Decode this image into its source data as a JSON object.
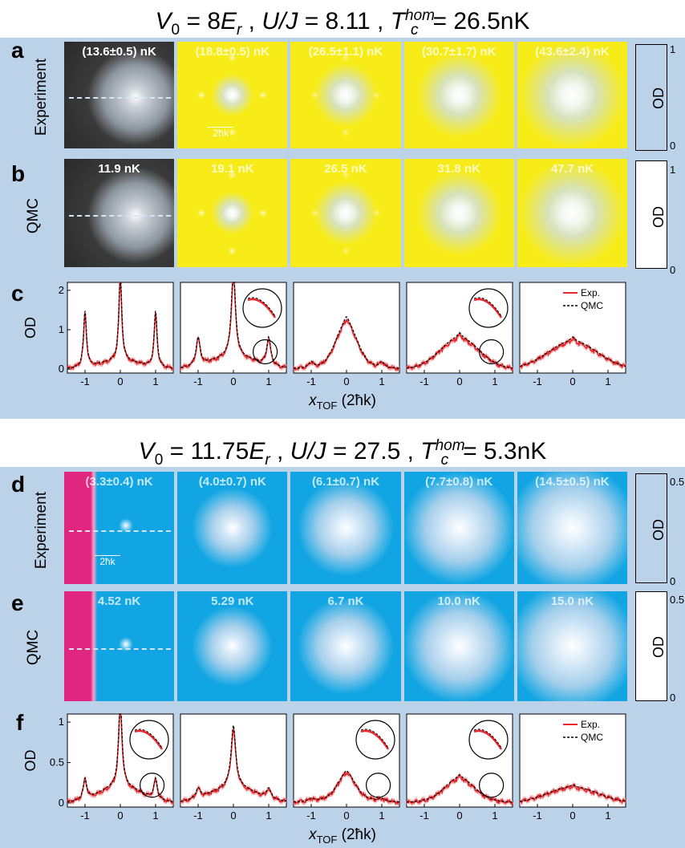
{
  "top": {
    "title": {
      "p1": "V",
      "p1sub": "0",
      "p2": " = 8",
      "p3": "E",
      "p3sub": "r",
      "p4": " ,  ",
      "p5": "U/J",
      "p6": " = 8.11 ,  ",
      "p7": "T",
      "p7sub": "c",
      "p7sup": "hom",
      "p8": "= 26.5nK"
    },
    "panel_a": {
      "label": "a",
      "row_label": "Experiment",
      "temps": [
        "(13.6±0.5) nK",
        "(18.8±0.5) nK",
        "(26.5±1.1) nK",
        "(30.7±1.7) nK",
        "(43.6±2.4) nK"
      ],
      "scalebar": "2ħk",
      "colorbar": {
        "max": "1",
        "min": "0",
        "label": "OD"
      }
    },
    "panel_b": {
      "label": "b",
      "row_label": "QMC",
      "temps": [
        "11.9 nK",
        "19.1 nK",
        "26.5 nK",
        "31.8 nK",
        "47.7 nK"
      ],
      "colorbar": {
        "max": "1",
        "min": "0",
        "label": "OD"
      }
    },
    "panel_c": {
      "label": "c",
      "ylabel": "OD",
      "yticks": [
        "0",
        "1",
        "2"
      ],
      "xticks": [
        "-1",
        "0",
        "1"
      ],
      "xlabel": "x",
      "xlabel_sub": "TOF",
      "xlabel_unit": " (2ħk)",
      "legend": [
        "Exp.",
        "QMC"
      ]
    }
  },
  "bottom": {
    "title": {
      "p1": "V",
      "p1sub": "0",
      "p2": " = 11.75",
      "p3": "E",
      "p3sub": "r",
      "p4": " ,  ",
      "p5": "U/J",
      "p6": " = 27.5 ,  ",
      "p7": "T",
      "p7sub": "c",
      "p7sup": "hom",
      "p8": "= 5.3nK"
    },
    "panel_d": {
      "label": "d",
      "row_label": "Experiment",
      "temps": [
        "(3.3±0.4) nK",
        "(4.0±0.7) nK",
        "(6.1±0.7) nK",
        "(7.7±0.8) nK",
        "(14.5±0.5) nK"
      ],
      "scalebar": "2ħk",
      "colorbar": {
        "max": "0.5",
        "min": "0",
        "label": "OD"
      }
    },
    "panel_e": {
      "label": "e",
      "row_label": "QMC",
      "temps": [
        "4.52 nK",
        "5.29 nK",
        "6.7 nK",
        "10.0 nK",
        "15.0 nK"
      ],
      "colorbar": {
        "max": "0.5",
        "min": "0",
        "label": "OD"
      }
    },
    "panel_f": {
      "label": "f",
      "ylabel": "OD",
      "yticks": [
        "0",
        "0.5",
        "1"
      ],
      "xticks": [
        "-1",
        "0",
        "1"
      ],
      "xlabel": "x",
      "xlabel_sub": "TOF",
      "xlabel_unit": " (2ħk)",
      "legend": [
        "Exp.",
        "QMC"
      ]
    }
  },
  "colors": {
    "band": "#bcd2e8",
    "yellow": "#f7ec17",
    "gray": "#3a3a3a",
    "cyan": "#11a6e3",
    "magenta": "#e0267f",
    "exp_line": "#e8282d",
    "exp_band": "#f2a3a3",
    "qmc_line": "#000000"
  },
  "chart_data": [
    {
      "type": "line",
      "panel": "c",
      "xlim": [
        -1.5,
        1.5
      ],
      "ylim": [
        -0.1,
        2.2
      ],
      "series_names": [
        "Exp.",
        "QMC"
      ],
      "profiles": [
        {
          "temperature_nK": 13.6,
          "center_peak": 2.2,
          "side_peaks": 1.4,
          "width": 0.05,
          "background": 0.05,
          "inset_circle": false
        },
        {
          "temperature_nK": 18.8,
          "center_peak": 2.2,
          "side_peaks": 0.7,
          "width": 0.07,
          "background": 0.15,
          "inset_circle": true
        },
        {
          "temperature_nK": 26.5,
          "center_peak": 1.2,
          "side_peaks": 0.15,
          "width": 0.3,
          "background": 0.1,
          "inset_circle": false
        },
        {
          "temperature_nK": 30.7,
          "center_peak": 0.85,
          "side_peaks": 0.0,
          "width": 0.55,
          "background": 0.05,
          "inset_circle": true
        },
        {
          "temperature_nK": 43.6,
          "center_peak": 0.75,
          "side_peaks": 0.0,
          "width": 0.7,
          "background": 0.05,
          "inset_circle": false
        }
      ]
    },
    {
      "type": "line",
      "panel": "f",
      "xlim": [
        -1.5,
        1.5
      ],
      "ylim": [
        -0.05,
        1.1
      ],
      "series_names": [
        "Exp.",
        "QMC"
      ],
      "profiles": [
        {
          "temperature_nK": 3.3,
          "center_peak": 1.05,
          "side_peaks": 0.25,
          "width": 0.06,
          "background": 0.05,
          "inset_circle": true
        },
        {
          "temperature_nK": 4.0,
          "center_peak": 0.75,
          "side_peaks": 0.12,
          "width": 0.08,
          "background": 0.1,
          "inset_circle": false
        },
        {
          "temperature_nK": 6.1,
          "center_peak": 0.32,
          "side_peaks": 0.03,
          "width": 0.25,
          "background": 0.07,
          "inset_circle": true
        },
        {
          "temperature_nK": 7.7,
          "center_peak": 0.28,
          "side_peaks": 0.0,
          "width": 0.4,
          "background": 0.06,
          "inset_circle": true
        },
        {
          "temperature_nK": 14.5,
          "center_peak": 0.18,
          "side_peaks": 0.0,
          "width": 0.7,
          "background": 0.04,
          "inset_circle": false
        }
      ]
    }
  ]
}
